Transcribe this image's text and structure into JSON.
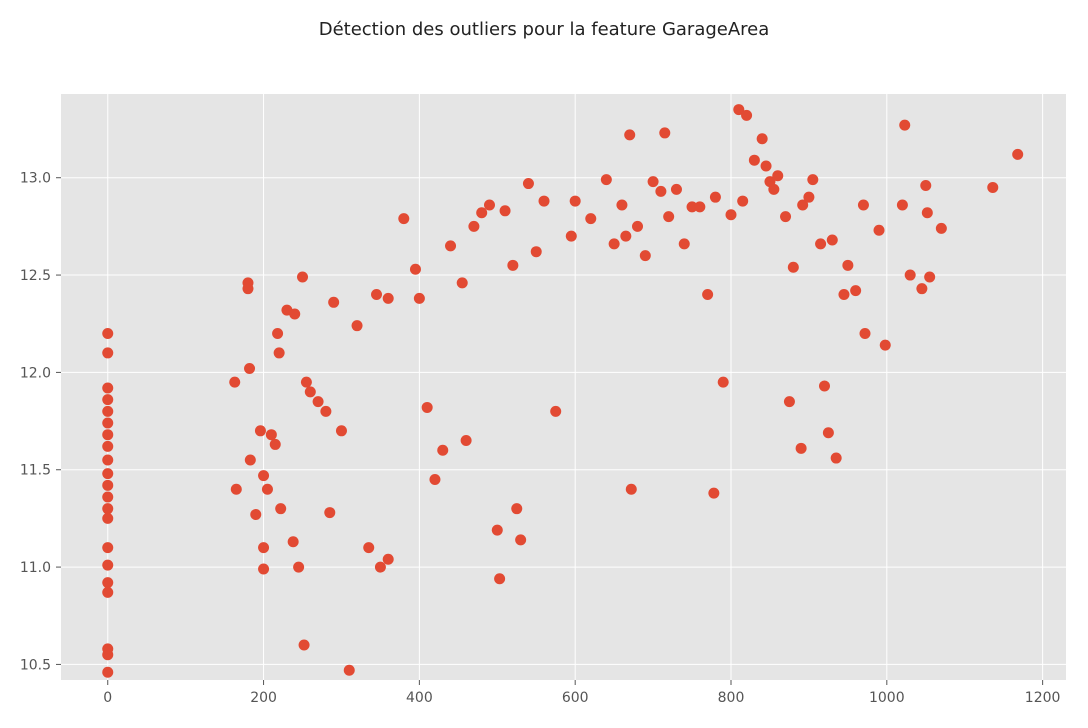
{
  "chart_data": {
    "type": "scatter",
    "title": "Détection des outliers pour la feature GarageArea",
    "xlabel": "",
    "ylabel": "",
    "xlim": [
      -60,
      1230
    ],
    "ylim": [
      10.42,
      13.43
    ],
    "x_ticks": [
      0,
      200,
      400,
      600,
      800,
      1000,
      1200
    ],
    "x_tick_labels": [
      "0",
      "200",
      "400",
      "600",
      "800",
      "1000",
      "1200"
    ],
    "y_ticks": [
      10.5,
      11.0,
      11.5,
      12.0,
      12.5,
      13.0
    ],
    "y_tick_labels": [
      "10.5",
      "11.0",
      "11.5",
      "12.0",
      "12.5",
      "13.0"
    ],
    "grid": true,
    "style": "ggplot",
    "colors": {
      "panel": "#e5e5e5",
      "grid": "#ffffff",
      "marker": "#e24a33"
    },
    "points": [
      [
        0,
        10.46
      ],
      [
        0,
        10.55
      ],
      [
        0,
        10.58
      ],
      [
        0,
        10.87
      ],
      [
        0,
        10.92
      ],
      [
        0,
        11.01
      ],
      [
        0,
        11.1
      ],
      [
        0,
        11.25
      ],
      [
        0,
        11.3
      ],
      [
        0,
        11.36
      ],
      [
        0,
        11.42
      ],
      [
        0,
        11.48
      ],
      [
        0,
        11.55
      ],
      [
        0,
        11.62
      ],
      [
        0,
        11.68
      ],
      [
        0,
        11.74
      ],
      [
        0,
        11.8
      ],
      [
        0,
        11.86
      ],
      [
        0,
        11.92
      ],
      [
        0,
        12.1
      ],
      [
        0,
        12.2
      ],
      [
        163,
        11.95
      ],
      [
        165,
        11.4
      ],
      [
        180,
        12.46
      ],
      [
        180,
        12.43
      ],
      [
        182,
        12.02
      ],
      [
        183,
        11.55
      ],
      [
        190,
        11.27
      ],
      [
        196,
        11.7
      ],
      [
        200,
        11.47
      ],
      [
        200,
        11.1
      ],
      [
        200,
        10.99
      ],
      [
        205,
        11.4
      ],
      [
        210,
        11.68
      ],
      [
        215,
        11.63
      ],
      [
        218,
        12.2
      ],
      [
        220,
        12.1
      ],
      [
        222,
        11.3
      ],
      [
        230,
        12.32
      ],
      [
        240,
        12.3
      ],
      [
        238,
        11.13
      ],
      [
        245,
        11.0
      ],
      [
        250,
        12.49
      ],
      [
        252,
        10.6
      ],
      [
        255,
        11.95
      ],
      [
        260,
        11.9
      ],
      [
        270,
        11.85
      ],
      [
        280,
        11.8
      ],
      [
        285,
        11.28
      ],
      [
        290,
        12.36
      ],
      [
        300,
        11.7
      ],
      [
        310,
        10.47
      ],
      [
        320,
        12.24
      ],
      [
        335,
        11.1
      ],
      [
        350,
        11.0
      ],
      [
        345,
        12.4
      ],
      [
        360,
        12.38
      ],
      [
        360,
        11.04
      ],
      [
        380,
        12.79
      ],
      [
        395,
        12.53
      ],
      [
        400,
        12.38
      ],
      [
        410,
        11.82
      ],
      [
        420,
        11.45
      ],
      [
        430,
        11.6
      ],
      [
        440,
        12.65
      ],
      [
        455,
        12.46
      ],
      [
        460,
        11.65
      ],
      [
        470,
        12.75
      ],
      [
        480,
        12.82
      ],
      [
        490,
        12.86
      ],
      [
        500,
        11.19
      ],
      [
        503,
        10.94
      ],
      [
        510,
        12.83
      ],
      [
        520,
        12.55
      ],
      [
        525,
        11.3
      ],
      [
        530,
        11.14
      ],
      [
        540,
        12.97
      ],
      [
        550,
        12.62
      ],
      [
        560,
        12.88
      ],
      [
        575,
        11.8
      ],
      [
        595,
        12.7
      ],
      [
        600,
        12.88
      ],
      [
        620,
        12.79
      ],
      [
        640,
        12.99
      ],
      [
        650,
        12.66
      ],
      [
        660,
        12.86
      ],
      [
        665,
        12.7
      ],
      [
        670,
        13.22
      ],
      [
        672,
        11.4
      ],
      [
        680,
        12.75
      ],
      [
        690,
        12.6
      ],
      [
        700,
        12.98
      ],
      [
        710,
        12.93
      ],
      [
        715,
        13.23
      ],
      [
        720,
        12.8
      ],
      [
        730,
        12.94
      ],
      [
        740,
        12.66
      ],
      [
        750,
        12.85
      ],
      [
        760,
        12.85
      ],
      [
        770,
        12.4
      ],
      [
        778,
        11.38
      ],
      [
        780,
        12.9
      ],
      [
        790,
        11.95
      ],
      [
        800,
        12.81
      ],
      [
        810,
        13.35
      ],
      [
        815,
        12.88
      ],
      [
        820,
        13.32
      ],
      [
        830,
        13.09
      ],
      [
        840,
        13.2
      ],
      [
        845,
        13.06
      ],
      [
        850,
        12.98
      ],
      [
        855,
        12.94
      ],
      [
        860,
        13.01
      ],
      [
        870,
        12.8
      ],
      [
        875,
        11.85
      ],
      [
        880,
        12.54
      ],
      [
        890,
        11.61
      ],
      [
        892,
        12.86
      ],
      [
        900,
        12.9
      ],
      [
        905,
        12.99
      ],
      [
        915,
        12.66
      ],
      [
        920,
        11.93
      ],
      [
        925,
        11.69
      ],
      [
        930,
        12.68
      ],
      [
        935,
        11.56
      ],
      [
        945,
        12.4
      ],
      [
        950,
        12.55
      ],
      [
        960,
        12.42
      ],
      [
        970,
        12.86
      ],
      [
        972,
        12.2
      ],
      [
        990,
        12.73
      ],
      [
        998,
        12.14
      ],
      [
        1020,
        12.86
      ],
      [
        1023,
        13.27
      ],
      [
        1030,
        12.5
      ],
      [
        1045,
        12.43
      ],
      [
        1050,
        12.96
      ],
      [
        1052,
        12.82
      ],
      [
        1055,
        12.49
      ],
      [
        1070,
        12.74
      ],
      [
        1136,
        12.95
      ],
      [
        1168,
        13.12
      ]
    ]
  }
}
